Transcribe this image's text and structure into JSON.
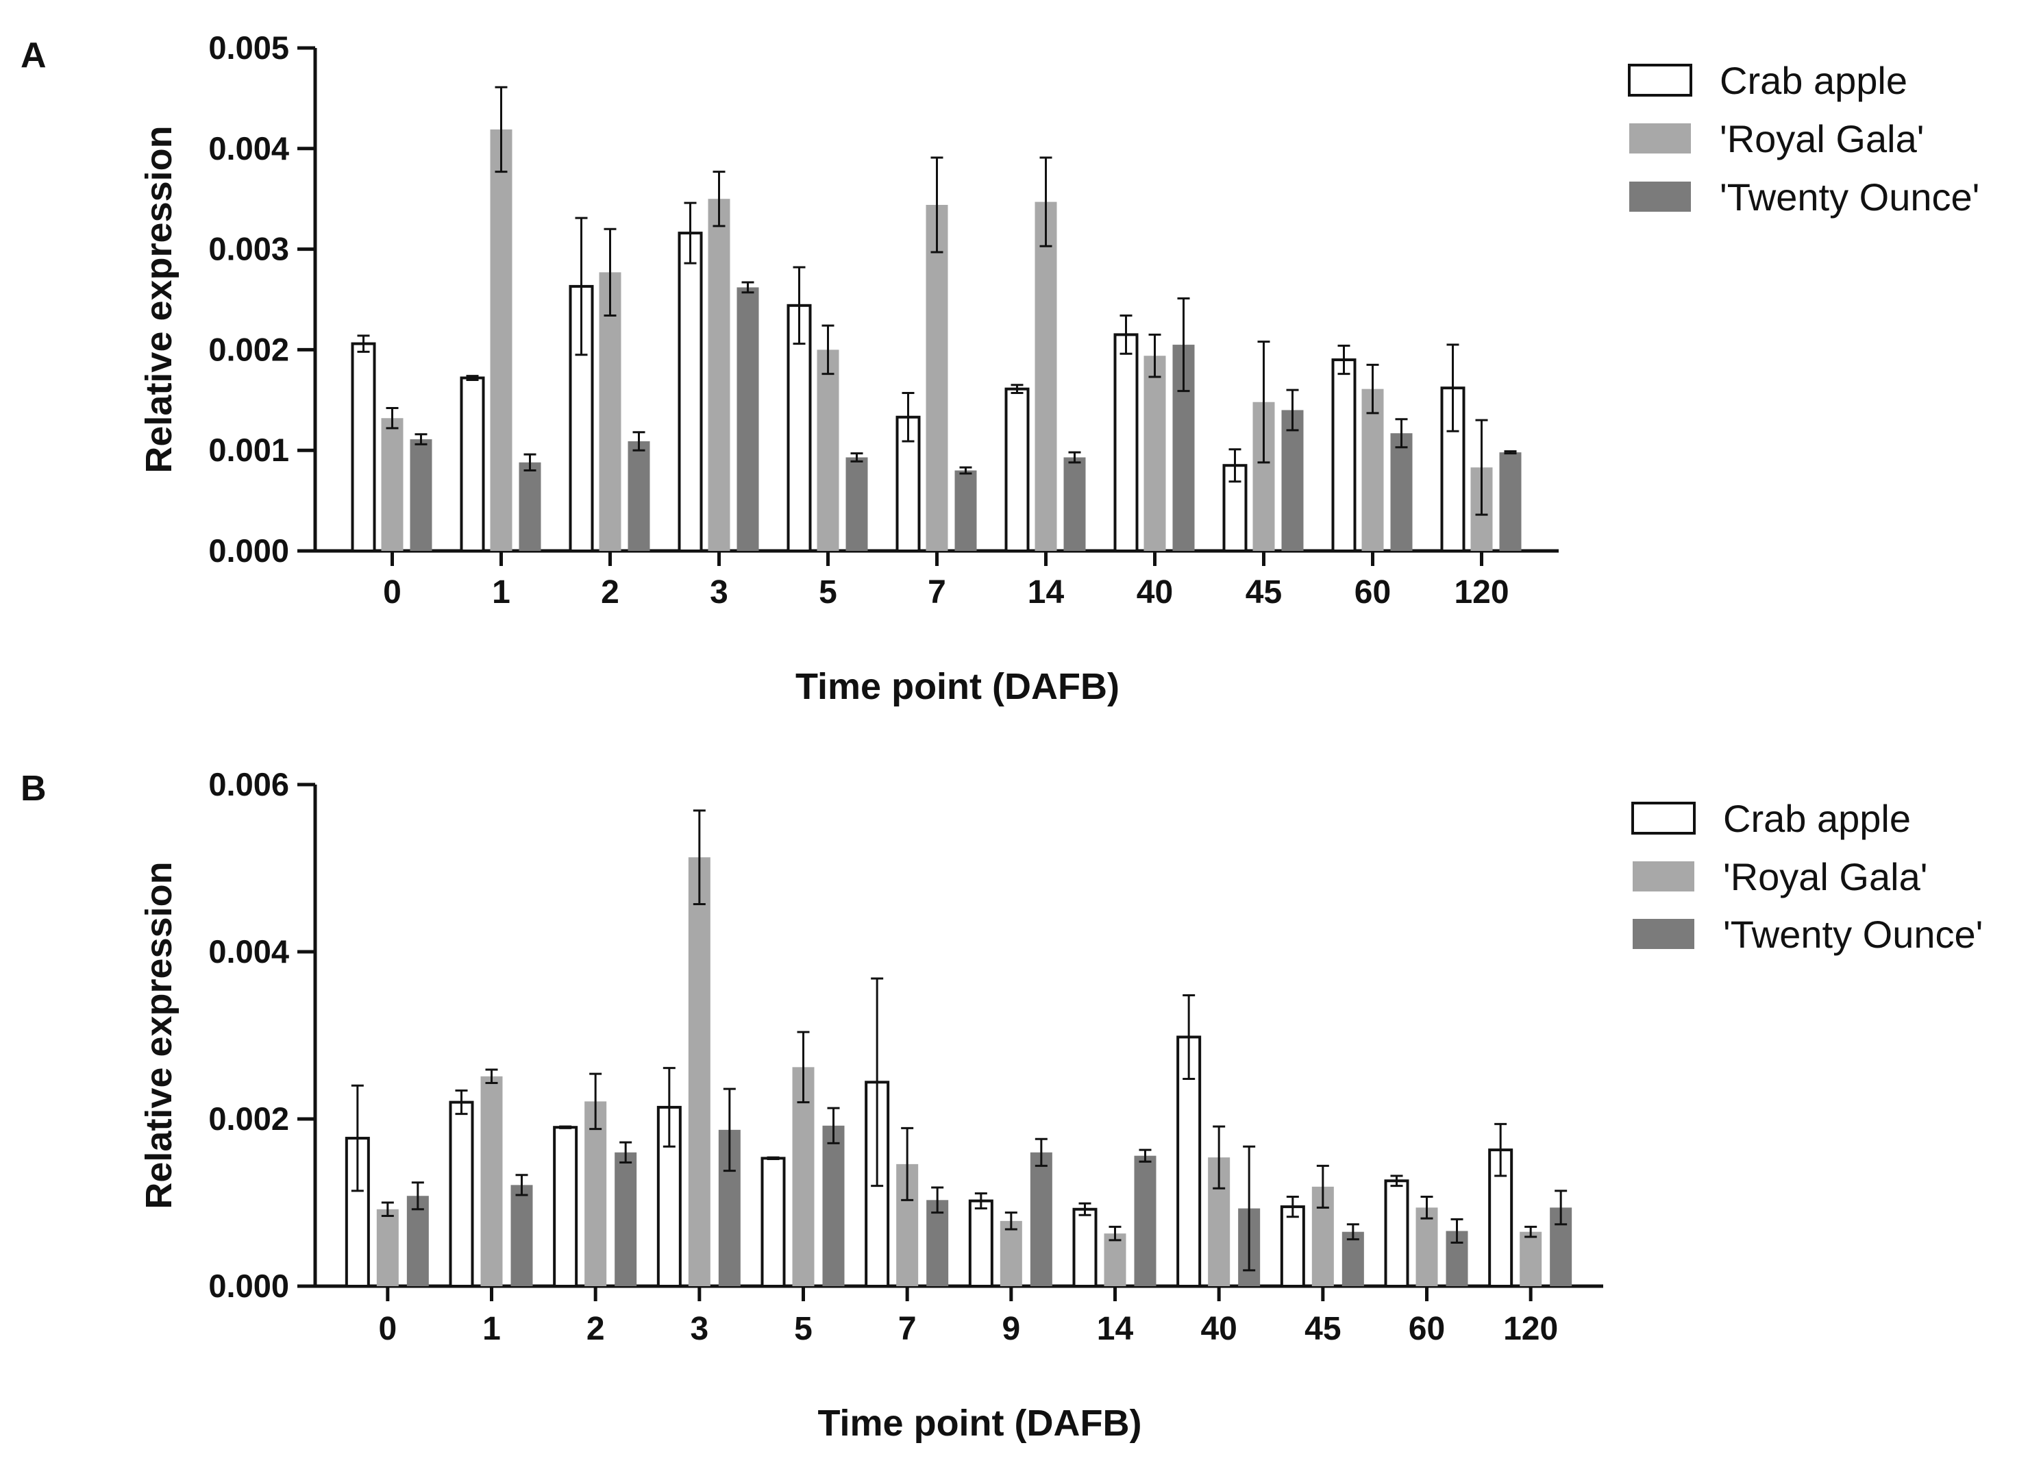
{
  "chart_data": [
    {
      "panel_label": "A",
      "type": "bar",
      "xlabel": "Time point (DAFB)",
      "ylabel": "Relative expression",
      "ylim": [
        0,
        0.005
      ],
      "yticks": [
        "0.000",
        "0.001",
        "0.002",
        "0.003",
        "0.004",
        "0.005"
      ],
      "ytick_values": [
        0,
        0.001,
        0.002,
        0.003,
        0.004,
        0.005
      ],
      "categories": [
        "0",
        "1",
        "2",
        "3",
        "5",
        "7",
        "14",
        "40",
        "45",
        "60",
        "120"
      ],
      "legend_position": "top-right",
      "series": [
        {
          "name": "Crab apple",
          "fill": "#ffffff",
          "values": [
            0.00206,
            0.00172,
            0.00263,
            0.00316,
            0.00244,
            0.00133,
            0.00161,
            0.00215,
            0.00085,
            0.0019,
            0.00162
          ],
          "errors": [
            8e-05,
            2e-05,
            0.00068,
            0.0003,
            0.00038,
            0.00024,
            4e-05,
            0.00019,
            0.00016,
            0.00014,
            0.00043
          ]
        },
        {
          "name": "'Royal Gala'",
          "fill": "#a8a8a8",
          "values": [
            0.00132,
            0.00419,
            0.00277,
            0.0035,
            0.002,
            0.00344,
            0.00347,
            0.00194,
            0.00148,
            0.00161,
            0.00083
          ],
          "errors": [
            0.0001,
            0.00042,
            0.00043,
            0.00027,
            0.00024,
            0.00047,
            0.00044,
            0.00021,
            0.0006,
            0.00024,
            0.00047
          ]
        },
        {
          "name": "'Twenty Ounce'",
          "fill": "#7b7b7b",
          "values": [
            0.00111,
            0.00088,
            0.00109,
            0.00262,
            0.00093,
            0.0008,
            0.00093,
            0.00205,
            0.0014,
            0.00117,
            0.00098
          ],
          "errors": [
            5e-05,
            8e-05,
            9e-05,
            5e-05,
            4e-05,
            3e-05,
            5e-05,
            0.00046,
            0.0002,
            0.00014,
            1e-05
          ]
        }
      ]
    },
    {
      "panel_label": "B",
      "type": "bar",
      "xlabel": "Time point (DAFB)",
      "ylabel": "Relative expression",
      "ylim": [
        0,
        0.006
      ],
      "yticks": [
        "0.000",
        "0.002",
        "0.004",
        "0.006"
      ],
      "ytick_values": [
        0,
        0.002,
        0.004,
        0.006
      ],
      "categories": [
        "0",
        "1",
        "2",
        "3",
        "5",
        "7",
        "9",
        "14",
        "40",
        "45",
        "60",
        "120"
      ],
      "legend_position": "top-right",
      "series": [
        {
          "name": "Crab apple",
          "fill": "#ffffff",
          "values": [
            0.00177,
            0.0022,
            0.0019,
            0.00214,
            0.00153,
            0.00244,
            0.00102,
            0.00092,
            0.00298,
            0.00095,
            0.00126,
            0.00163
          ],
          "errors": [
            0.00063,
            0.00014,
            1e-05,
            0.00047,
            1e-05,
            0.00124,
            9e-05,
            7e-05,
            0.0005,
            0.00012,
            6e-05,
            0.00031
          ]
        },
        {
          "name": "'Royal Gala'",
          "fill": "#a8a8a8",
          "values": [
            0.00092,
            0.00251,
            0.00221,
            0.00513,
            0.00262,
            0.00146,
            0.00078,
            0.00063,
            0.00154,
            0.00119,
            0.00094,
            0.00065
          ],
          "errors": [
            8e-05,
            8e-05,
            0.00033,
            0.00056,
            0.00042,
            0.00043,
            0.0001,
            8e-05,
            0.00037,
            0.00025,
            0.00013,
            6e-05
          ]
        },
        {
          "name": "'Twenty Ounce'",
          "fill": "#7b7b7b",
          "values": [
            0.00108,
            0.00121,
            0.0016,
            0.00187,
            0.00192,
            0.00103,
            0.0016,
            0.00156,
            0.00093,
            0.00065,
            0.00066,
            0.00094
          ],
          "errors": [
            0.00016,
            0.00012,
            0.00012,
            0.00049,
            0.00021,
            0.00015,
            0.00016,
            7e-05,
            0.00074,
            9e-05,
            0.00014,
            0.0002
          ]
        }
      ]
    }
  ]
}
